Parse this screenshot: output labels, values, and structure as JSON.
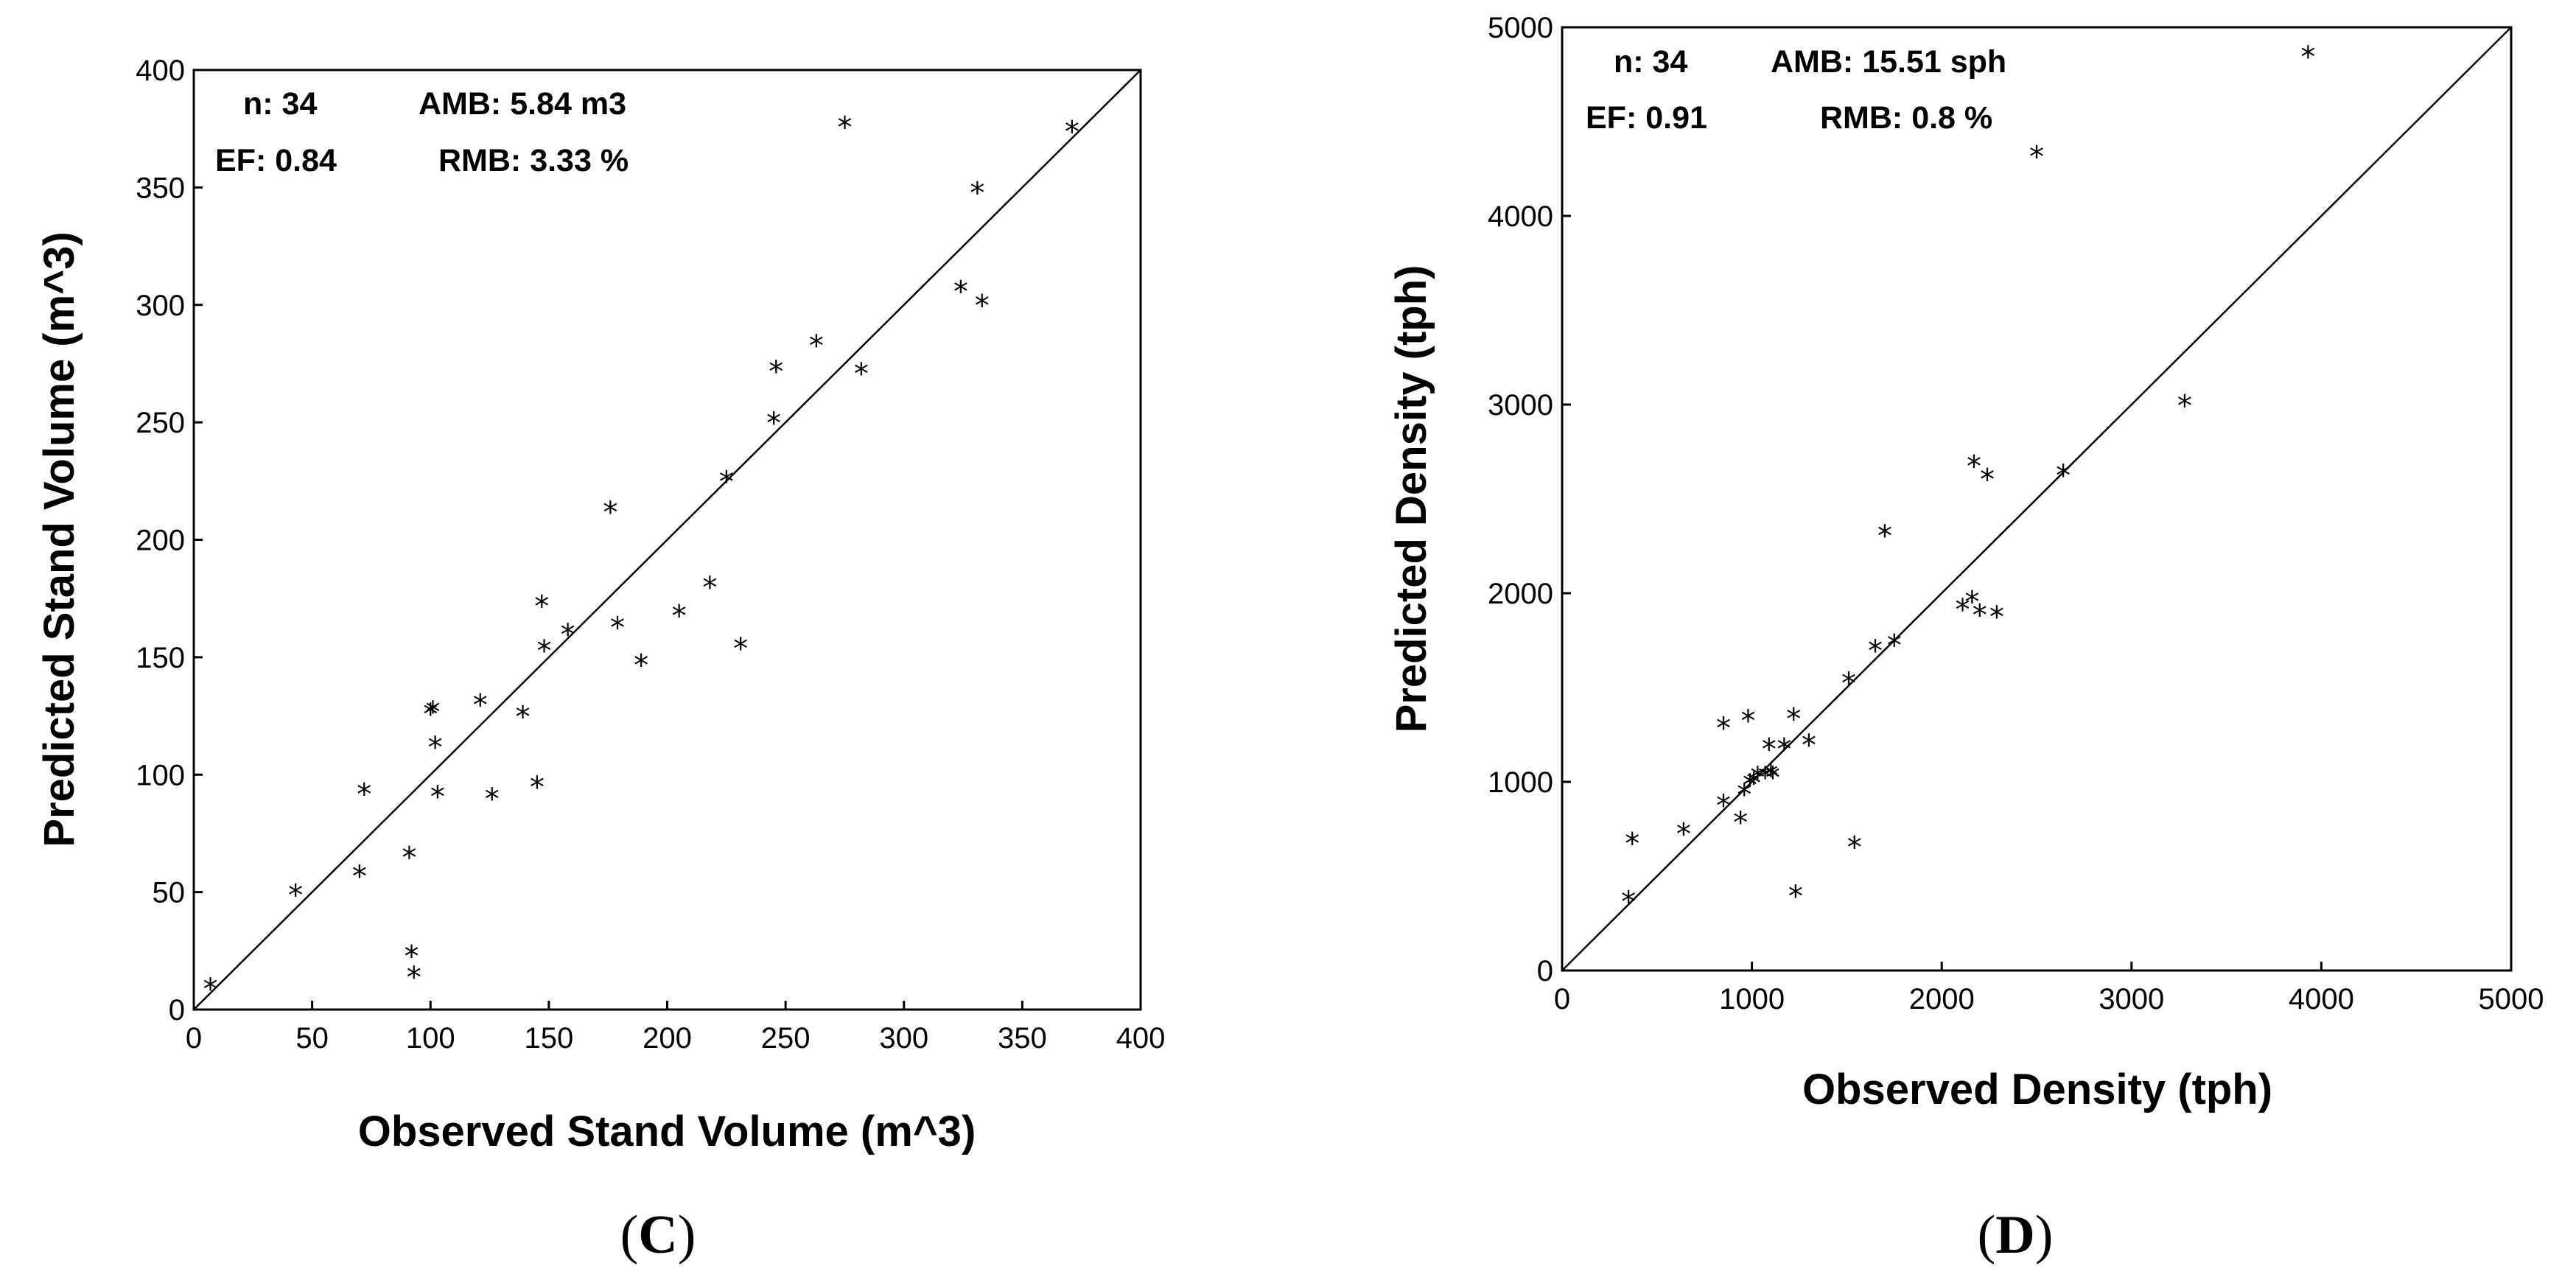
{
  "chart_data": [
    {
      "type": "scatter",
      "panel": "C",
      "xlabel": "Observed Stand Volume (m^3)",
      "ylabel": "Predicted Stand Volume (m^3)",
      "xlim": [
        0,
        400
      ],
      "ylim": [
        0,
        400
      ],
      "xticks": [
        "0",
        "50",
        "100",
        "150",
        "200",
        "250",
        "300",
        "350",
        "400"
      ],
      "yticks": [
        "0",
        "50",
        "100",
        "150",
        "200",
        "250",
        "300",
        "350",
        "400"
      ],
      "identity_line": true,
      "marker": "*",
      "stats": {
        "n": "n: 34",
        "amb": "AMB: 5.84 m3",
        "ef": "EF: 0.84",
        "rmb": "RMB: 3.33 %"
      },
      "points": [
        [
          7,
          10
        ],
        [
          43,
          50
        ],
        [
          70,
          58
        ],
        [
          72,
          93
        ],
        [
          91,
          66
        ],
        [
          92,
          24
        ],
        [
          93,
          15
        ],
        [
          100,
          127
        ],
        [
          101,
          128
        ],
        [
          102,
          113
        ],
        [
          103,
          92
        ],
        [
          121,
          131
        ],
        [
          126,
          91
        ],
        [
          139,
          126
        ],
        [
          145,
          96
        ],
        [
          147,
          173
        ],
        [
          148,
          154
        ],
        [
          158,
          161
        ],
        [
          176,
          213
        ],
        [
          179,
          164
        ],
        [
          189,
          148
        ],
        [
          205,
          169
        ],
        [
          218,
          181
        ],
        [
          225,
          226
        ],
        [
          231,
          155
        ],
        [
          245,
          251
        ],
        [
          246,
          273
        ],
        [
          263,
          284
        ],
        [
          282,
          272
        ],
        [
          275,
          377
        ],
        [
          324,
          307
        ],
        [
          331,
          349
        ],
        [
          333,
          301
        ],
        [
          371,
          375
        ]
      ]
    },
    {
      "type": "scatter",
      "panel": "D",
      "xlabel": "Observed Density (tph)",
      "ylabel": "Predicted Density (tph)",
      "xlim": [
        0,
        5000
      ],
      "ylim": [
        0,
        5000
      ],
      "xticks": [
        "0",
        "1000",
        "2000",
        "3000",
        "4000",
        "5000"
      ],
      "yticks": [
        "0",
        "1000",
        "2000",
        "3000",
        "4000",
        "5000"
      ],
      "identity_line": true,
      "marker": "*",
      "stats": {
        "n": "n: 34",
        "amb": "AMB: 15.51 sph",
        "ef": "EF: 0.91",
        "rmb": "RMB: 0.8 %"
      },
      "points": [
        [
          350,
          380
        ],
        [
          370,
          690
        ],
        [
          640,
          740
        ],
        [
          850,
          890
        ],
        [
          850,
          1300
        ],
        [
          940,
          800
        ],
        [
          960,
          950
        ],
        [
          980,
          1340
        ],
        [
          990,
          1000
        ],
        [
          1010,
          1010
        ],
        [
          1030,
          1040
        ],
        [
          1090,
          1190
        ],
        [
          1100,
          1050
        ],
        [
          1110,
          1040
        ],
        [
          1170,
          1190
        ],
        [
          1220,
          1350
        ],
        [
          1230,
          410
        ],
        [
          1300,
          1210
        ],
        [
          1510,
          1540
        ],
        [
          1540,
          670
        ],
        [
          1650,
          1710
        ],
        [
          1700,
          2320
        ],
        [
          1750,
          1740
        ],
        [
          2110,
          1930
        ],
        [
          2160,
          1970
        ],
        [
          2170,
          2690
        ],
        [
          2200,
          1900
        ],
        [
          2240,
          2620
        ],
        [
          2290,
          1890
        ],
        [
          2500,
          4330
        ],
        [
          2640,
          2640
        ],
        [
          3280,
          3010
        ],
        [
          3930,
          4860
        ],
        [
          1070,
          1040
        ]
      ]
    }
  ],
  "labels": {
    "c_open": "(",
    "c_letter": "C",
    "c_close": ")",
    "d_open": "(",
    "d_letter": "D",
    "d_close": ")"
  }
}
